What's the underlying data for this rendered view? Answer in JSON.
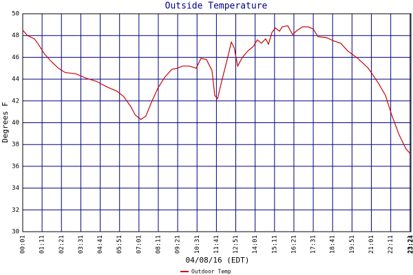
{
  "chart_data": {
    "type": "line",
    "title": "Outside Temperature",
    "x_label": "04/08/16 (EDT)",
    "y_label": "Degrees F",
    "x": [
      1,
      18,
      43,
      55,
      80,
      105,
      130,
      155,
      192,
      229,
      267,
      304,
      341,
      366,
      391,
      408,
      428,
      446,
      465,
      490,
      515,
      540,
      560,
      578,
      603,
      628,
      645,
      665,
      685,
      695,
      705,
      720,
      740,
      755,
      765,
      778,
      795,
      815,
      834,
      849,
      864,
      879,
      889,
      902,
      914,
      929,
      939,
      959,
      976,
      994,
      1013,
      1033,
      1051,
      1068,
      1100,
      1125,
      1150,
      1175,
      1212,
      1250,
      1287,
      1312,
      1336,
      1361,
      1386,
      1404
    ],
    "series": [
      {
        "name": "Outdoor Temp",
        "color": "#cc0000",
        "values": [
          48.5,
          48.0,
          47.7,
          47.3,
          46.3,
          45.6,
          45.0,
          44.6,
          44.5,
          44.1,
          43.8,
          43.3,
          42.9,
          42.4,
          41.5,
          40.7,
          40.3,
          40.6,
          41.8,
          43.2,
          44.2,
          44.9,
          45.0,
          45.2,
          45.2,
          45.0,
          45.9,
          45.8,
          44.8,
          42.5,
          42.2,
          43.8,
          45.8,
          47.4,
          46.9,
          45.2,
          46.0,
          46.6,
          47.0,
          47.6,
          47.3,
          47.7,
          47.2,
          48.3,
          48.7,
          48.4,
          48.8,
          48.9,
          48.1,
          48.5,
          48.8,
          48.8,
          48.6,
          47.9,
          47.8,
          47.5,
          47.3,
          46.6,
          45.9,
          45.0,
          43.6,
          42.5,
          40.6,
          38.9,
          37.6,
          37.1
        ]
      }
    ],
    "xlim": [
      1,
      1404
    ],
    "xticks": [
      {
        "value": 1,
        "label": "00:01"
      },
      {
        "value": 71,
        "label": "01:11"
      },
      {
        "value": 141,
        "label": "02:21"
      },
      {
        "value": 211,
        "label": "03:31"
      },
      {
        "value": 281,
        "label": "04:41"
      },
      {
        "value": 351,
        "label": "05:51"
      },
      {
        "value": 421,
        "label": "07:01"
      },
      {
        "value": 491,
        "label": "08:11"
      },
      {
        "value": 561,
        "label": "09:21"
      },
      {
        "value": 631,
        "label": "10:31"
      },
      {
        "value": 701,
        "label": "11:41"
      },
      {
        "value": 771,
        "label": "12:51"
      },
      {
        "value": 841,
        "label": "14:01"
      },
      {
        "value": 911,
        "label": "15:11"
      },
      {
        "value": 981,
        "label": "16:21"
      },
      {
        "value": 1051,
        "label": "17:31"
      },
      {
        "value": 1121,
        "label": "18:41"
      },
      {
        "value": 1191,
        "label": "19:51"
      },
      {
        "value": 1261,
        "label": "21:01"
      },
      {
        "value": 1331,
        "label": "22:11"
      },
      {
        "value": 1401,
        "label": "23:21"
      },
      {
        "value": 1404,
        "label": "23:24"
      }
    ],
    "ylim": [
      30,
      50
    ],
    "yticks": [
      30,
      32,
      34,
      36,
      38,
      40,
      42,
      44,
      46,
      48,
      50
    ],
    "grid": true,
    "grid_color": "#000080"
  }
}
